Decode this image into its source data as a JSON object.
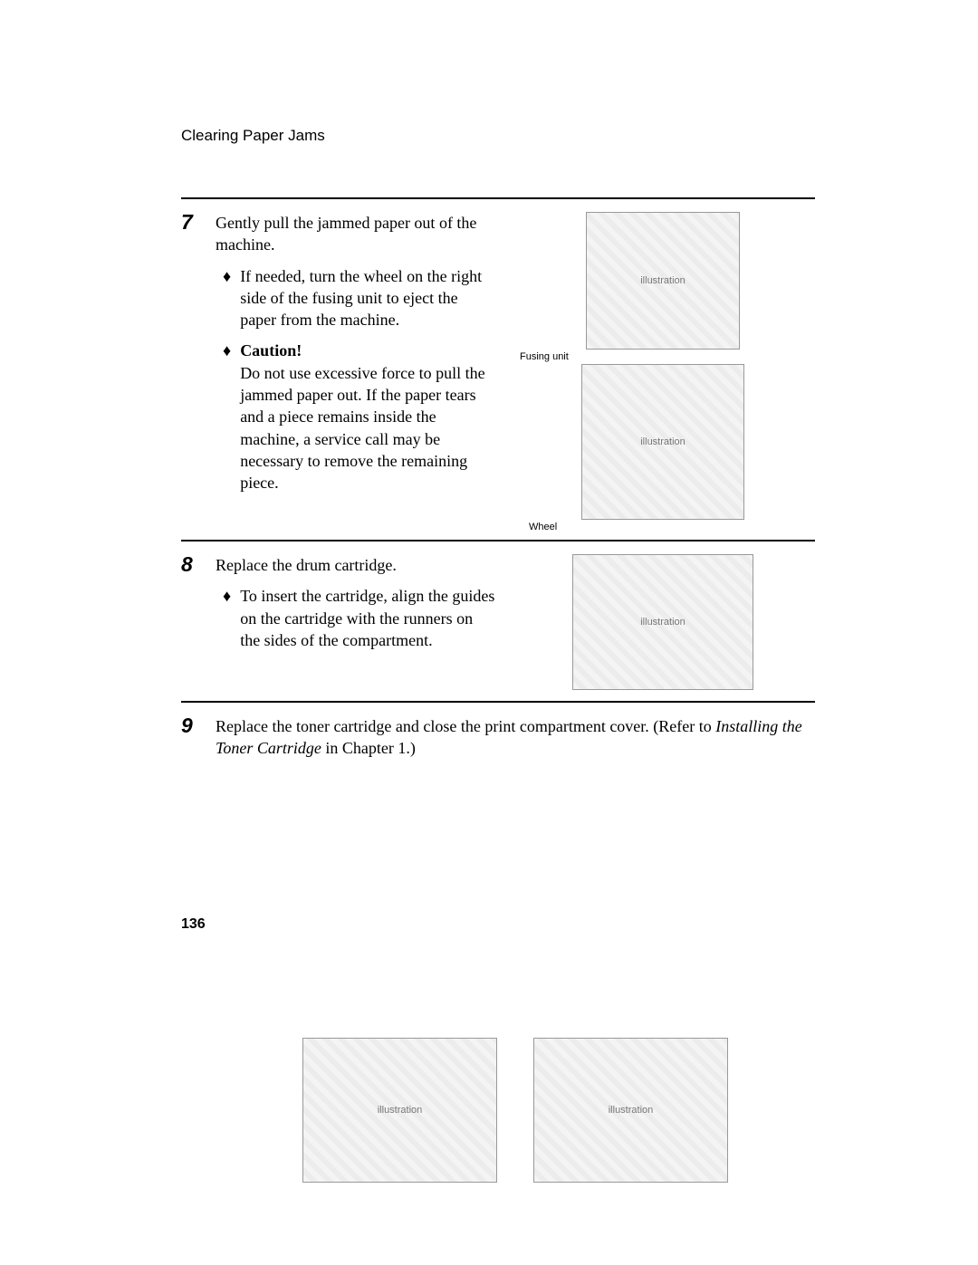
{
  "header": "Clearing Paper Jams",
  "page_number": "136",
  "steps": {
    "s7": {
      "num": "7",
      "intro": "Gently pull the jammed paper out of the machine.",
      "bullet1": "If needed, turn the wheel on the right side of the fusing unit to eject the paper from the machine.",
      "caution_label": "Caution!",
      "caution_body": "Do not use excessive force to pull the jammed paper out. If the paper tears and a piece remains inside the machine, a service call may be necessary to remove the remaining piece.",
      "caption_top": "Fusing unit",
      "caption_bottom": "Wheel"
    },
    "s8": {
      "num": "8",
      "intro": "Replace the drum cartridge.",
      "bullet1": "To insert the cartridge, align the guides on the cartridge with the runners on the sides of the compartment."
    },
    "s9": {
      "num": "9",
      "intro_a": "Replace the toner cartridge and close the print compartment cover. (Refer to ",
      "intro_ref": "Installing the Toner Cartridge",
      "intro_b": " in Chapter 1.)"
    }
  },
  "illustration_placeholder": "illustration"
}
